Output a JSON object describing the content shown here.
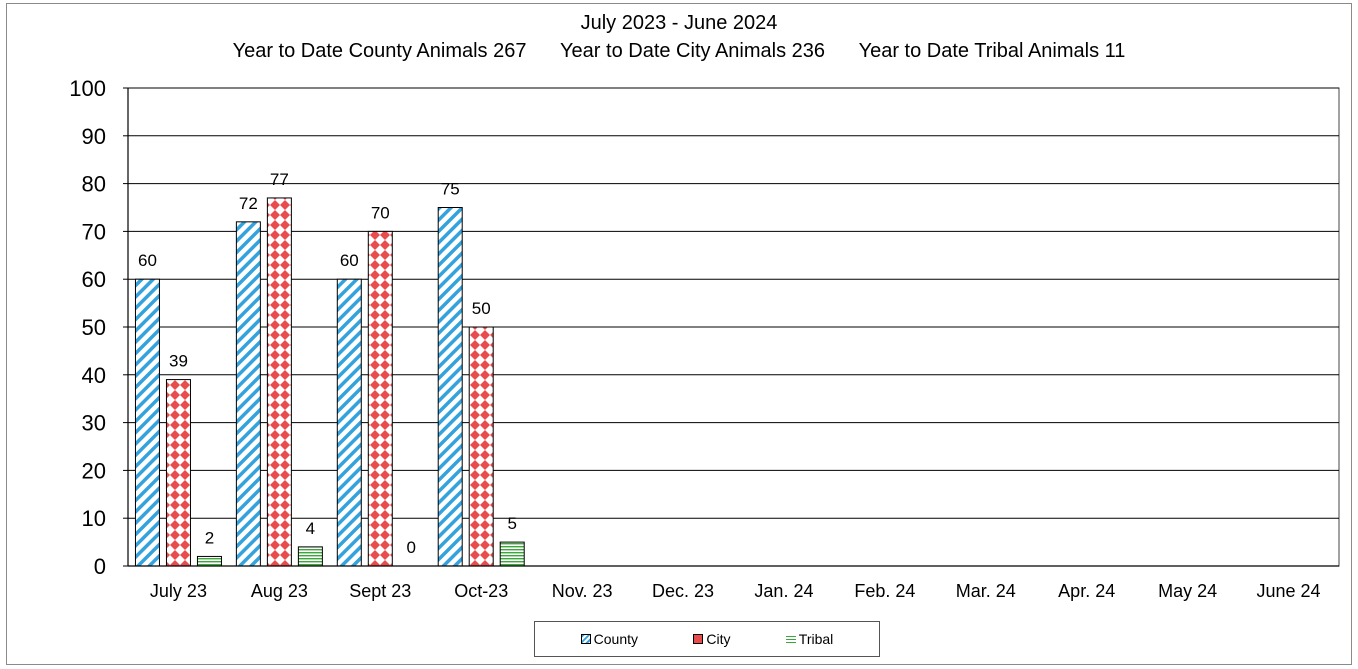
{
  "title": "July 2023 - June 2024",
  "ytd": {
    "county": "Year to Date County Animals 267",
    "city": "Year to Date City Animals 236",
    "tribal": "Year to Date Tribal Animals  11"
  },
  "colors": {
    "county": "#34a2dc",
    "city": "#e84c4c",
    "tribal": "#3ca63c",
    "grid": "#000000"
  },
  "legend": {
    "county": "County",
    "city": "City",
    "tribal": "Tribal"
  },
  "chart_data": {
    "type": "bar",
    "title": "July 2023 - June 2024",
    "xlabel": "",
    "ylabel": "",
    "ylim": [
      0,
      100
    ],
    "yticks": [
      0,
      10,
      20,
      30,
      40,
      50,
      60,
      70,
      80,
      90,
      100
    ],
    "grid": true,
    "legend_position": "bottom",
    "categories": [
      "July 23",
      "Aug 23",
      "Sept 23",
      "Oct-23",
      "Nov. 23",
      "Dec. 23",
      "Jan. 24",
      "Feb. 24",
      "Mar. 24",
      "Apr. 24",
      "May 24",
      "June 24"
    ],
    "series": [
      {
        "name": "County",
        "values": [
          60,
          72,
          60,
          75,
          null,
          null,
          null,
          null,
          null,
          null,
          null,
          null
        ],
        "labels": [
          "60",
          "72",
          "60",
          "75"
        ]
      },
      {
        "name": "City",
        "values": [
          39,
          77,
          70,
          50,
          null,
          null,
          null,
          null,
          null,
          null,
          null,
          null
        ],
        "labels": [
          "39",
          "77",
          "70",
          "50"
        ]
      },
      {
        "name": "Tribal",
        "values": [
          2,
          4,
          0,
          5,
          null,
          null,
          null,
          null,
          null,
          null,
          null,
          null
        ],
        "labels": [
          "2",
          "4",
          "0",
          "5"
        ]
      }
    ]
  }
}
